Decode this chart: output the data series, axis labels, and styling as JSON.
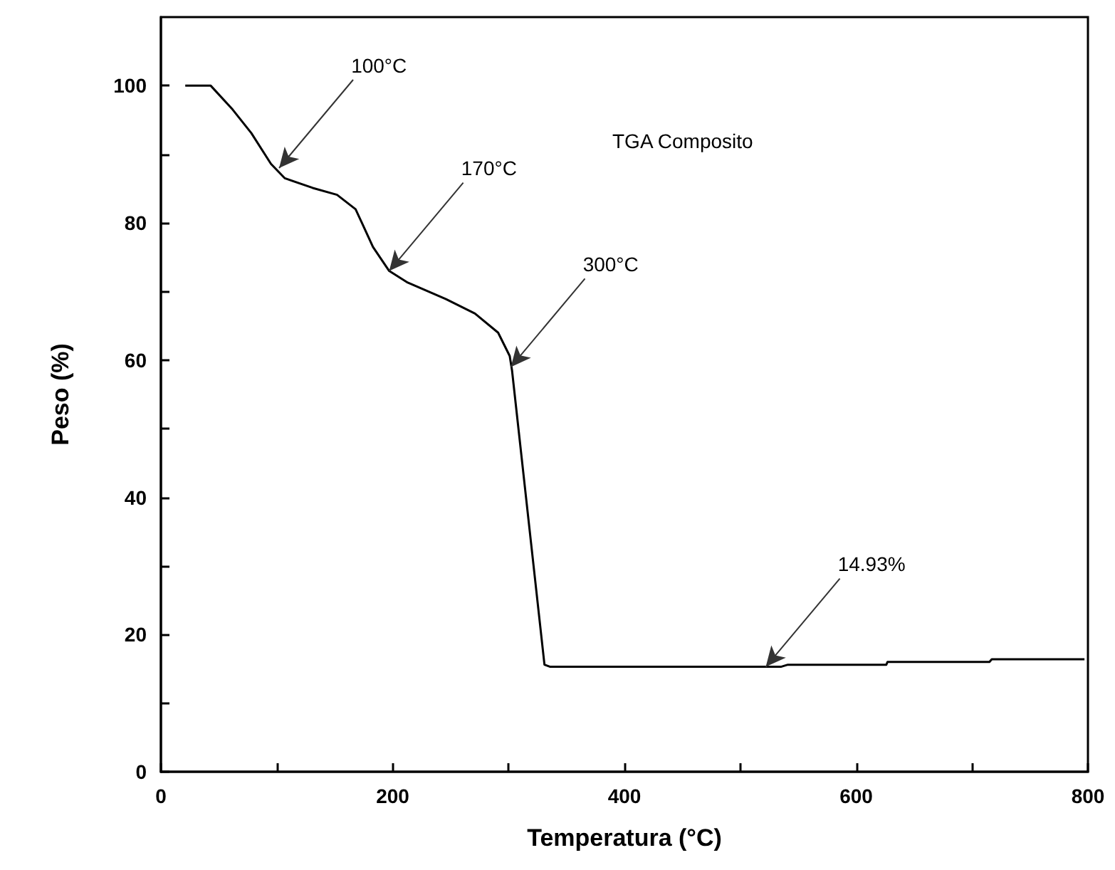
{
  "chart_data": {
    "type": "line",
    "title": "TGA Composito",
    "xlabel": "Temperatura (°C)",
    "ylabel": "Peso (%)",
    "series": [
      {
        "color": "#000000",
        "x": [
          21,
          43,
          62,
          78,
          95,
          107,
          131,
          152,
          168,
          183,
          197,
          213,
          246,
          271,
          291,
          301,
          303,
          331,
          336,
          535,
          541,
          626,
          627,
          715,
          717,
          797
        ],
        "values": [
          100,
          100,
          96.5,
          93.1,
          88.6,
          86.5,
          85.1,
          84.1,
          82,
          76.5,
          73,
          71.3,
          68.9,
          66.8,
          64,
          60.6,
          58.5,
          15.6,
          15.3,
          15.3,
          15.6,
          15.6,
          16,
          16,
          16.4,
          16.4
        ]
      }
    ],
    "xlim": [
      0,
      800
    ],
    "xticks": [
      0,
      {
        "value": 100,
        "label": null
      },
      200,
      {
        "value": 300,
        "label": null
      },
      400,
      {
        "value": 500,
        "label": null
      },
      600,
      {
        "value": 700,
        "label": null
      },
      800
    ],
    "ylim": [
      0,
      110
    ],
    "yticks": [
      0,
      {
        "value": 10,
        "label": null
      },
      20,
      {
        "value": 30,
        "label": null
      },
      40,
      {
        "value": 50,
        "label": null
      },
      60,
      {
        "value": 70,
        "label": null
      },
      80,
      {
        "value": 90,
        "label": null
      },
      100
    ],
    "annotations": [
      {
        "text": "100°C",
        "x": 102,
        "y": 88
      },
      {
        "text": "170°C",
        "x": 197,
        "y": 73
      },
      {
        "text": "300°C",
        "x": 302,
        "y": 59
      },
      {
        "text": "14.93%",
        "x": 522,
        "y": 15.3
      }
    ],
    "grid": false,
    "marker": "none",
    "line_style": "solid"
  }
}
